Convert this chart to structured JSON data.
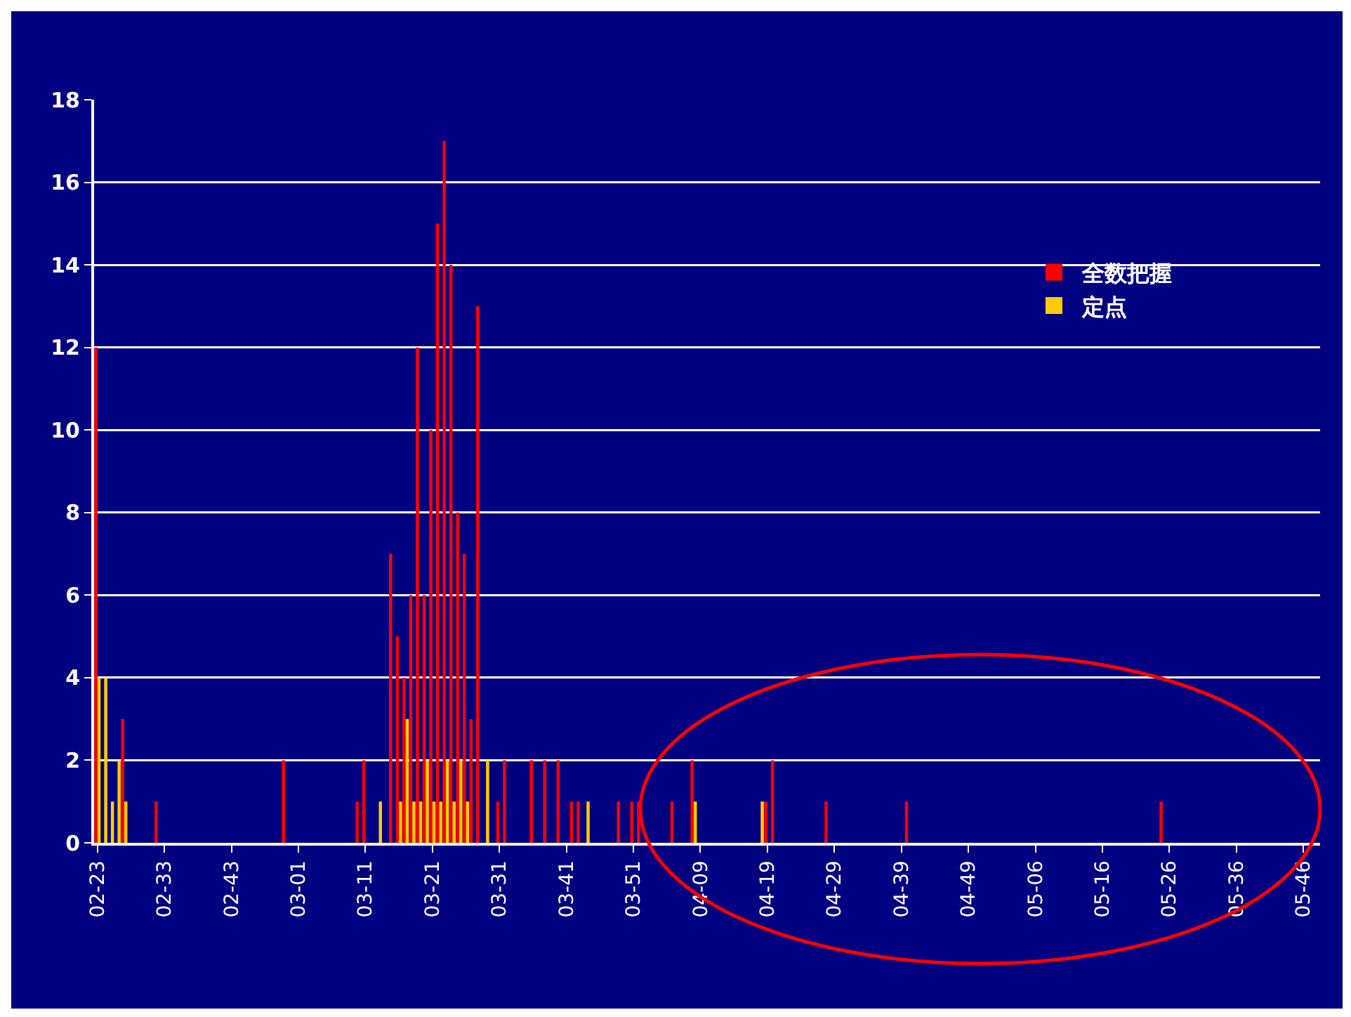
{
  "chart_data": {
    "type": "bar",
    "categories": [
      "02-23",
      null,
      null,
      null,
      null,
      null,
      null,
      null,
      null,
      null,
      "02-33",
      null,
      null,
      null,
      null,
      null,
      null,
      null,
      null,
      null,
      "02-43",
      null,
      null,
      null,
      null,
      null,
      null,
      null,
      null,
      null,
      "03-01",
      null,
      null,
      null,
      null,
      null,
      null,
      null,
      null,
      null,
      "03-11",
      null,
      null,
      null,
      null,
      null,
      null,
      null,
      null,
      null,
      "03-21",
      null,
      null,
      null,
      null,
      null,
      null,
      null,
      null,
      null,
      "03-31",
      null,
      null,
      null,
      null,
      null,
      null,
      null,
      null,
      null,
      "03-41",
      null,
      null,
      null,
      null,
      null,
      null,
      null,
      null,
      null,
      "03-51",
      null,
      null,
      null,
      null,
      null,
      null,
      null,
      null,
      null,
      "04-09",
      null,
      null,
      null,
      null,
      null,
      null,
      null,
      null,
      null,
      "04-19",
      null,
      null,
      null,
      null,
      null,
      null,
      null,
      null,
      null,
      "04-29",
      null,
      null,
      null,
      null,
      null,
      null,
      null,
      null,
      null,
      "04-39",
      null,
      null,
      null,
      null,
      null,
      null,
      null,
      null,
      null,
      "04-49",
      null,
      null,
      null,
      null,
      null,
      null,
      null,
      null,
      null,
      "05-06",
      null,
      null,
      null,
      null,
      null,
      null,
      null,
      null,
      null,
      "05-16",
      null,
      null,
      null,
      null,
      null,
      null,
      null,
      null,
      null,
      "05-26",
      null,
      null,
      null,
      null,
      null,
      null,
      null,
      null,
      null,
      "05-36",
      null,
      null,
      null,
      null,
      null,
      null,
      null,
      null,
      null,
      "05-46",
      null,
      null
    ],
    "series": [
      {
        "name": "全数把握",
        "color": "#ff0000",
        "values": [
          12,
          0,
          0,
          0,
          3,
          0,
          0,
          0,
          0,
          1,
          0,
          0,
          0,
          0,
          0,
          0,
          0,
          0,
          0,
          0,
          0,
          0,
          0,
          0,
          0,
          0,
          0,
          0,
          2,
          0,
          0,
          0,
          0,
          0,
          0,
          0,
          0,
          0,
          0,
          1,
          2,
          0,
          0,
          0,
          7,
          5,
          4,
          6,
          12,
          6,
          10,
          15,
          17,
          14,
          8,
          7,
          3,
          13,
          0,
          0,
          1,
          2,
          0,
          0,
          0,
          2,
          0,
          2,
          0,
          2,
          0,
          1,
          1,
          0,
          0,
          0,
          0,
          0,
          1,
          0,
          1,
          1,
          0,
          0,
          0,
          0,
          1,
          0,
          0,
          2,
          0,
          0,
          0,
          0,
          0,
          0,
          0,
          0,
          0,
          0,
          1,
          2,
          0,
          0,
          0,
          0,
          0,
          0,
          0,
          1,
          0,
          0,
          0,
          0,
          0,
          0,
          0,
          0,
          0,
          0,
          0,
          1,
          0,
          0,
          0,
          0,
          0,
          0,
          0,
          0,
          0,
          0,
          0,
          0,
          0,
          0,
          0,
          0,
          0,
          0,
          0,
          0,
          0,
          0,
          0,
          0,
          0,
          0,
          0,
          0,
          0,
          0,
          0,
          0,
          0,
          0,
          0,
          0,
          0,
          1,
          0,
          0,
          0,
          0,
          0,
          0,
          0,
          0,
          0,
          0,
          0,
          0,
          0,
          0,
          0,
          0,
          0,
          0,
          0,
          0,
          0,
          0,
          0
        ]
      },
      {
        "name": "定点",
        "color": "#ffcc00",
        "values": [
          4,
          4,
          1,
          2,
          1,
          0,
          0,
          0,
          0,
          0,
          0,
          0,
          0,
          0,
          0,
          0,
          0,
          0,
          0,
          0,
          0,
          0,
          0,
          0,
          0,
          0,
          0,
          0,
          0,
          0,
          0,
          0,
          0,
          0,
          0,
          0,
          0,
          0,
          0,
          0,
          0,
          0,
          1,
          0,
          0,
          1,
          3,
          1,
          1,
          2,
          1,
          1,
          2,
          1,
          2,
          1,
          0,
          0,
          2,
          0,
          0,
          0,
          0,
          0,
          0,
          0,
          0,
          0,
          0,
          0,
          0,
          0,
          0,
          1,
          0,
          0,
          0,
          0,
          0,
          0,
          0,
          0,
          0,
          0,
          0,
          0,
          0,
          0,
          0,
          1,
          0,
          0,
          0,
          0,
          0,
          0,
          0,
          0,
          0,
          1,
          0,
          0,
          0,
          0,
          0,
          0,
          0,
          0,
          0,
          0,
          0,
          0,
          0,
          0,
          0,
          0,
          0,
          0,
          0,
          0,
          0,
          0,
          0,
          0,
          0,
          0,
          0,
          0,
          0,
          0,
          0,
          0,
          0,
          0,
          0,
          0,
          0,
          0,
          0,
          0,
          0,
          0,
          0,
          0,
          0,
          0,
          0,
          0,
          0,
          0,
          0,
          0,
          0,
          0,
          0,
          0,
          0,
          0,
          0,
          0,
          0,
          0,
          0,
          0,
          0,
          0,
          0,
          0,
          0,
          0,
          0,
          0,
          0,
          0,
          0,
          0,
          0,
          0,
          0,
          0,
          0,
          0,
          0
        ]
      }
    ],
    "ylim": [
      0,
      18
    ],
    "yticks": [
      0,
      2,
      4,
      6,
      8,
      10,
      12,
      14,
      16,
      18
    ],
    "grid": "y",
    "legend": "top right"
  }
}
